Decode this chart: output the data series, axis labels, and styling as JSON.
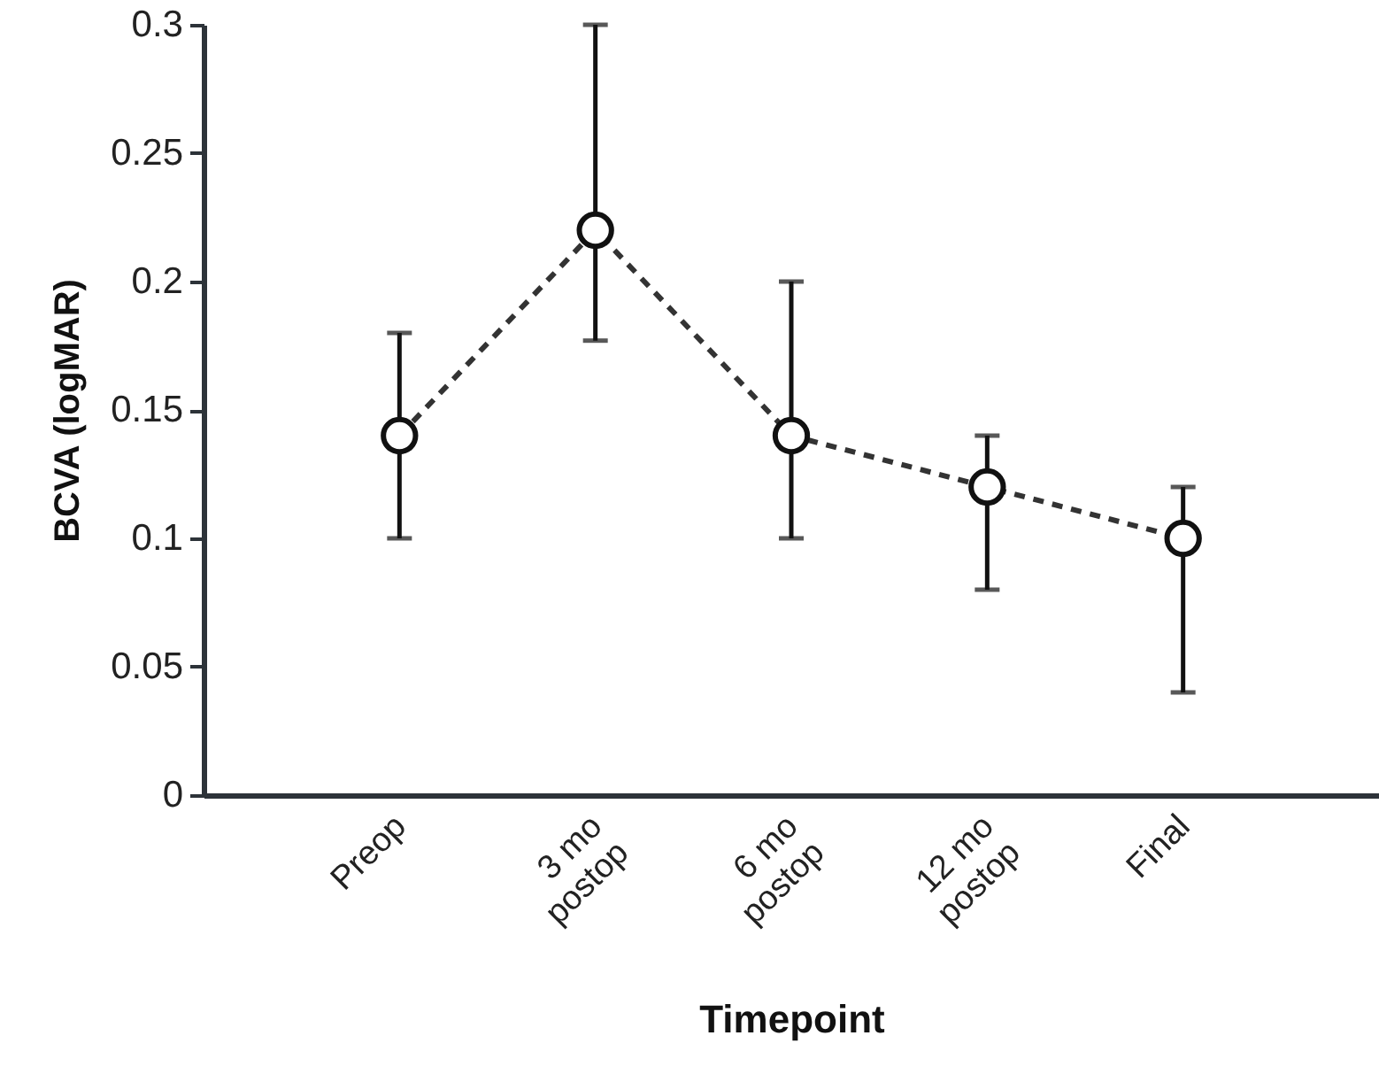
{
  "chart_data": {
    "type": "line",
    "xlabel": "Timepoint",
    "ylabel": "BCVA (logMAR)",
    "categories": [
      "Preop",
      "3 mo postop",
      "6 mo postop",
      "12 mo postop",
      "Final"
    ],
    "series": [
      {
        "color": "#333333",
        "values": [
          0.14,
          0.22,
          0.14,
          0.12,
          0.1
        ],
        "errors": [
          [
            0.1,
            0.18
          ],
          [
            0.177,
            0.3
          ],
          [
            0.1,
            0.2
          ],
          [
            0.08,
            0.14
          ],
          [
            0.04,
            0.12
          ]
        ]
      }
    ],
    "ylim": [
      0,
      0.3
    ],
    "yticks": [
      0,
      0.05,
      0.1,
      0.15,
      0.2,
      0.25,
      0.3
    ],
    "grid": false,
    "marker": "circle",
    "line_style": "dashed"
  }
}
